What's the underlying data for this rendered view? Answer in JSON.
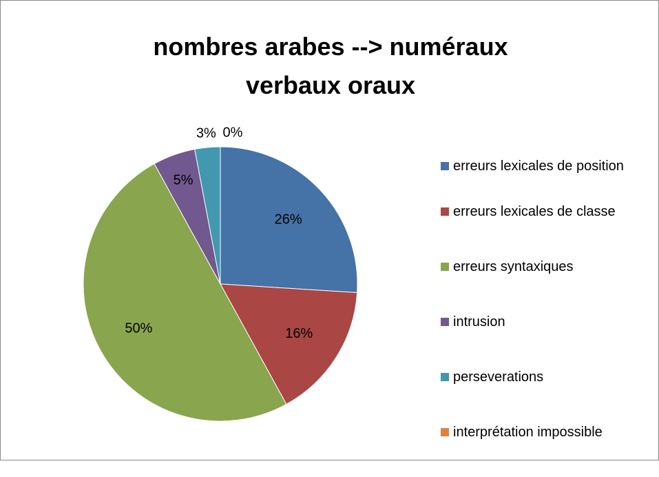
{
  "chart_data": {
    "type": "pie",
    "title": "nombres arabes --> numéraux verbaux oraux",
    "categories": [
      "erreurs lexicales de position",
      "erreurs lexicales de classe",
      "erreurs syntaxiques",
      "intrusion",
      "perseverations",
      "interprétation impossible"
    ],
    "values": [
      26,
      16,
      50,
      5,
      3,
      0
    ],
    "value_labels": [
      "26%",
      "16%",
      "50%",
      "5%",
      "3%",
      "0%"
    ],
    "colors": [
      "#4572a7",
      "#aa4643",
      "#89a54e",
      "#71588f",
      "#4198af",
      "#db843d"
    ],
    "legend": "right"
  }
}
